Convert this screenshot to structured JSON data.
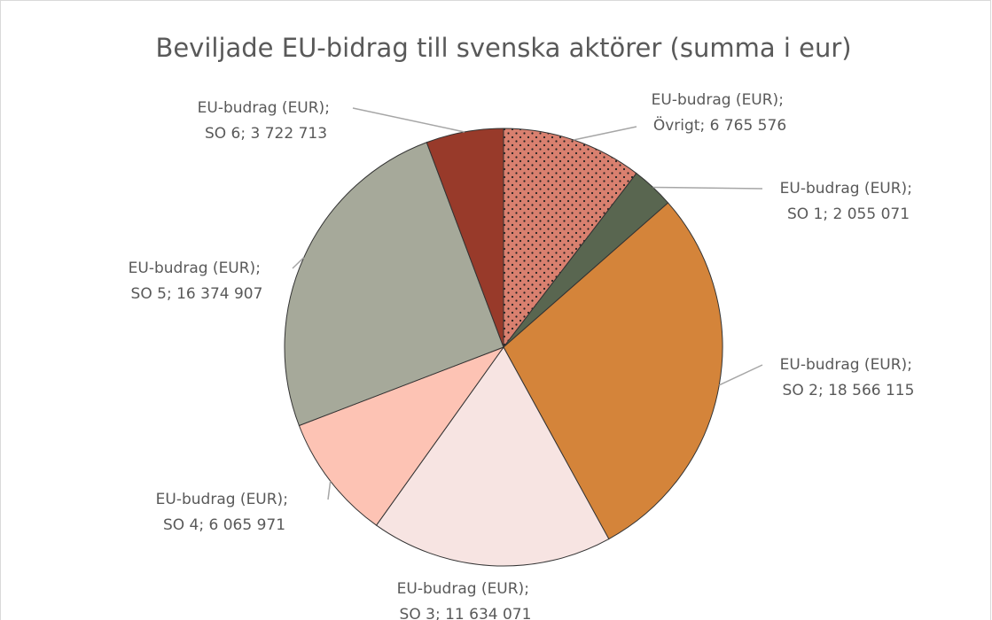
{
  "chart_data": {
    "type": "pie",
    "title": "Beviljade EU-bidrag till svenska aktörer (summa i eur)",
    "series_name": "EU-budrag (EUR)",
    "label_separator": "; ",
    "categories": [
      "Övrigt",
      "SO 1",
      "SO 2",
      "SO 3",
      "SO 4",
      "SO 5",
      "SO 6"
    ],
    "values": [
      6765576,
      2055071,
      18566115,
      11634071,
      6065971,
      16374907,
      3722713
    ],
    "value_labels": [
      "6 765 576",
      "2 055 071",
      "18 566 115",
      "11 634 071",
      "6 065 971",
      "16 374 907",
      "3 722 713"
    ],
    "colors": [
      "#d9806f",
      "#596650",
      "#d4843a",
      "#f7e4e2",
      "#fdc3b4",
      "#a6a99a",
      "#983a2a"
    ],
    "patterns": [
      "dots",
      null,
      null,
      null,
      null,
      null,
      null
    ]
  }
}
